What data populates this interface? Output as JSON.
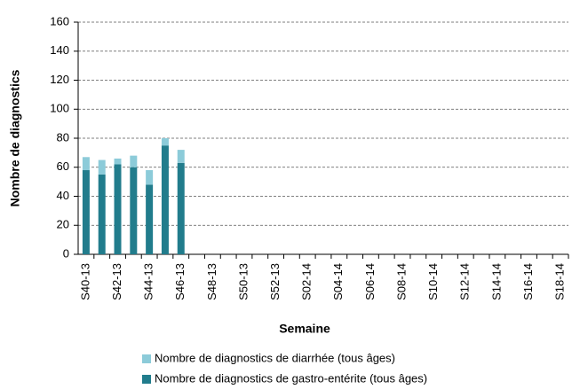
{
  "chart_data": {
    "type": "bar",
    "stacked": true,
    "x_label": "Semaine",
    "y_label": "Nombre de diagnostics",
    "categories": [
      "S40-13",
      null,
      "S42-13",
      null,
      "S44-13",
      null,
      "S46-13",
      null,
      "S48-13",
      null,
      "S50-13",
      null,
      "S52-13",
      null,
      "S02-14",
      null,
      "S04-14",
      null,
      "S06-14",
      null,
      "S08-14",
      null,
      "S10-14",
      null,
      "S12-14",
      null,
      "S14-14",
      null,
      "S16-14",
      null,
      "S18-14"
    ],
    "series": [
      {
        "name": "Nombre de diagnostics de diarrhée (tous âges)",
        "color": "#8ccbd9",
        "values": [
          9,
          10,
          4,
          8,
          10,
          5,
          9,
          null,
          null,
          null,
          null,
          null,
          null,
          null,
          null,
          null,
          null,
          null,
          null,
          null,
          null,
          null,
          null,
          null,
          null,
          null,
          null,
          null,
          null,
          null,
          null
        ]
      },
      {
        "name": "Nombre de diagnostics de gastro-entérite (tous âges)",
        "color": "#217c8c",
        "values": [
          58,
          55,
          62,
          60,
          48,
          75,
          63,
          null,
          null,
          null,
          null,
          null,
          null,
          null,
          null,
          null,
          null,
          null,
          null,
          null,
          null,
          null,
          null,
          null,
          null,
          null,
          null,
          null,
          null,
          null,
          null
        ]
      }
    ],
    "ylim": [
      0,
      160
    ],
    "yticks": [
      0,
      20,
      40,
      60,
      80,
      100,
      120,
      140,
      160
    ],
    "grid": true
  }
}
